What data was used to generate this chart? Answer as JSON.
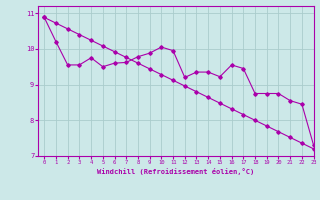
{
  "xlabel": "Windchill (Refroidissement éolien,°C)",
  "bg_color": "#cce8e8",
  "line_color": "#aa00aa",
  "grid_color": "#aacccc",
  "x_straight": [
    0,
    1,
    2,
    3,
    4,
    5,
    6,
    7,
    8,
    9,
    10,
    11,
    12,
    13,
    14,
    15,
    16,
    17,
    18,
    19,
    20,
    21,
    22,
    23
  ],
  "y_straight": [
    10.88,
    10.72,
    10.56,
    10.4,
    10.24,
    10.08,
    9.92,
    9.76,
    9.6,
    9.44,
    9.28,
    9.12,
    8.96,
    8.8,
    8.64,
    8.48,
    8.32,
    8.16,
    8.0,
    7.84,
    7.68,
    7.52,
    7.36,
    7.2
  ],
  "x_jagged": [
    0,
    1,
    2,
    3,
    4,
    5,
    6,
    7,
    8,
    9,
    10,
    11,
    12,
    13,
    14,
    15,
    16,
    17,
    18,
    19,
    20,
    21,
    22,
    23
  ],
  "y_jagged": [
    10.88,
    10.2,
    9.55,
    9.55,
    9.75,
    9.5,
    9.6,
    9.62,
    9.78,
    9.88,
    10.05,
    9.95,
    9.2,
    9.35,
    9.35,
    9.22,
    9.55,
    9.45,
    8.75,
    8.75,
    8.75,
    8.55,
    8.45,
    7.3
  ],
  "ylim": [
    7,
    11.2
  ],
  "yticks": [
    7,
    8,
    9,
    10,
    11
  ],
  "xlim": [
    -0.5,
    23
  ],
  "xticks": [
    0,
    1,
    2,
    3,
    4,
    5,
    6,
    7,
    8,
    9,
    10,
    11,
    12,
    13,
    14,
    15,
    16,
    17,
    18,
    19,
    20,
    21,
    22,
    23
  ]
}
